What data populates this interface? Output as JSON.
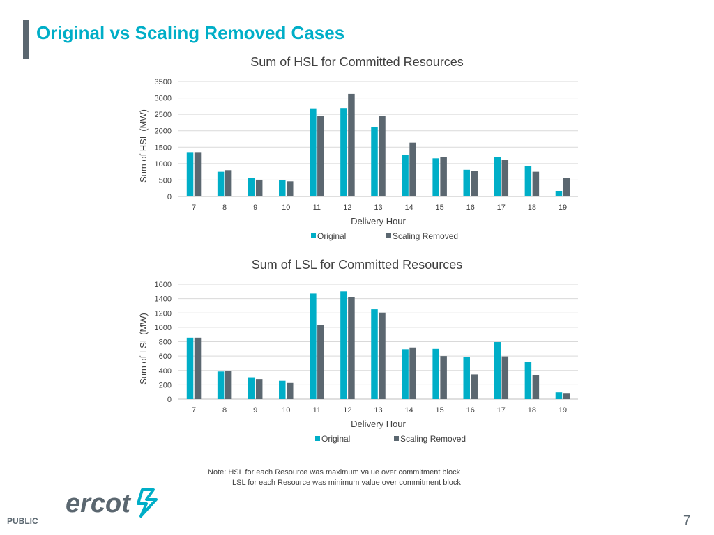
{
  "slide": {
    "title": "Original vs Scaling Removed Cases",
    "note_line1": "Note: HSL for each Resource was maximum value over commitment block",
    "note_line2": "LSL for each Resource was minimum value over commitment block",
    "footer_label": "PUBLIC",
    "page_number": "7",
    "logo_text": "ercot"
  },
  "colors": {
    "original": "#00aec7",
    "scaling_removed": "#5b6770",
    "title": "#00aec7",
    "gridline": "#d9d9d9"
  },
  "chart_data": [
    {
      "type": "bar",
      "title": "Sum of HSL for Committed Resources",
      "xlabel": "Delivery Hour",
      "ylabel": "Sum of HSL (MW)",
      "categories": [
        "7",
        "8",
        "9",
        "10",
        "11",
        "12",
        "13",
        "14",
        "15",
        "16",
        "17",
        "18",
        "19"
      ],
      "ylim": [
        0,
        3500
      ],
      "yticks": [
        0,
        500,
        1000,
        1500,
        2000,
        2500,
        3000,
        3500
      ],
      "grid": true,
      "legend_position": "bottom",
      "series": [
        {
          "name": "Original",
          "values": [
            1350,
            750,
            560,
            500,
            2680,
            2690,
            2100,
            1260,
            1160,
            810,
            1200,
            920,
            170
          ]
        },
        {
          "name": "Scaling Removed",
          "values": [
            1350,
            800,
            510,
            460,
            2440,
            3120,
            2460,
            1640,
            1200,
            770,
            1120,
            750,
            570
          ]
        }
      ]
    },
    {
      "type": "bar",
      "title": "Sum of LSL for Committed Resources",
      "xlabel": "Delivery Hour",
      "ylabel": "Sum of LSL (MW)",
      "categories": [
        "7",
        "8",
        "9",
        "10",
        "11",
        "12",
        "13",
        "14",
        "15",
        "16",
        "17",
        "18",
        "19"
      ],
      "ylim": [
        0,
        1600
      ],
      "yticks": [
        0,
        200,
        400,
        600,
        800,
        1000,
        1200,
        1400,
        1600
      ],
      "grid": true,
      "legend_position": "bottom",
      "series": [
        {
          "name": "Original",
          "values": [
            855,
            385,
            305,
            255,
            1470,
            1500,
            1250,
            695,
            700,
            585,
            795,
            515,
            95
          ]
        },
        {
          "name": "Scaling Removed",
          "values": [
            855,
            390,
            280,
            225,
            1030,
            1420,
            1205,
            720,
            600,
            345,
            595,
            330,
            85
          ]
        }
      ]
    }
  ]
}
